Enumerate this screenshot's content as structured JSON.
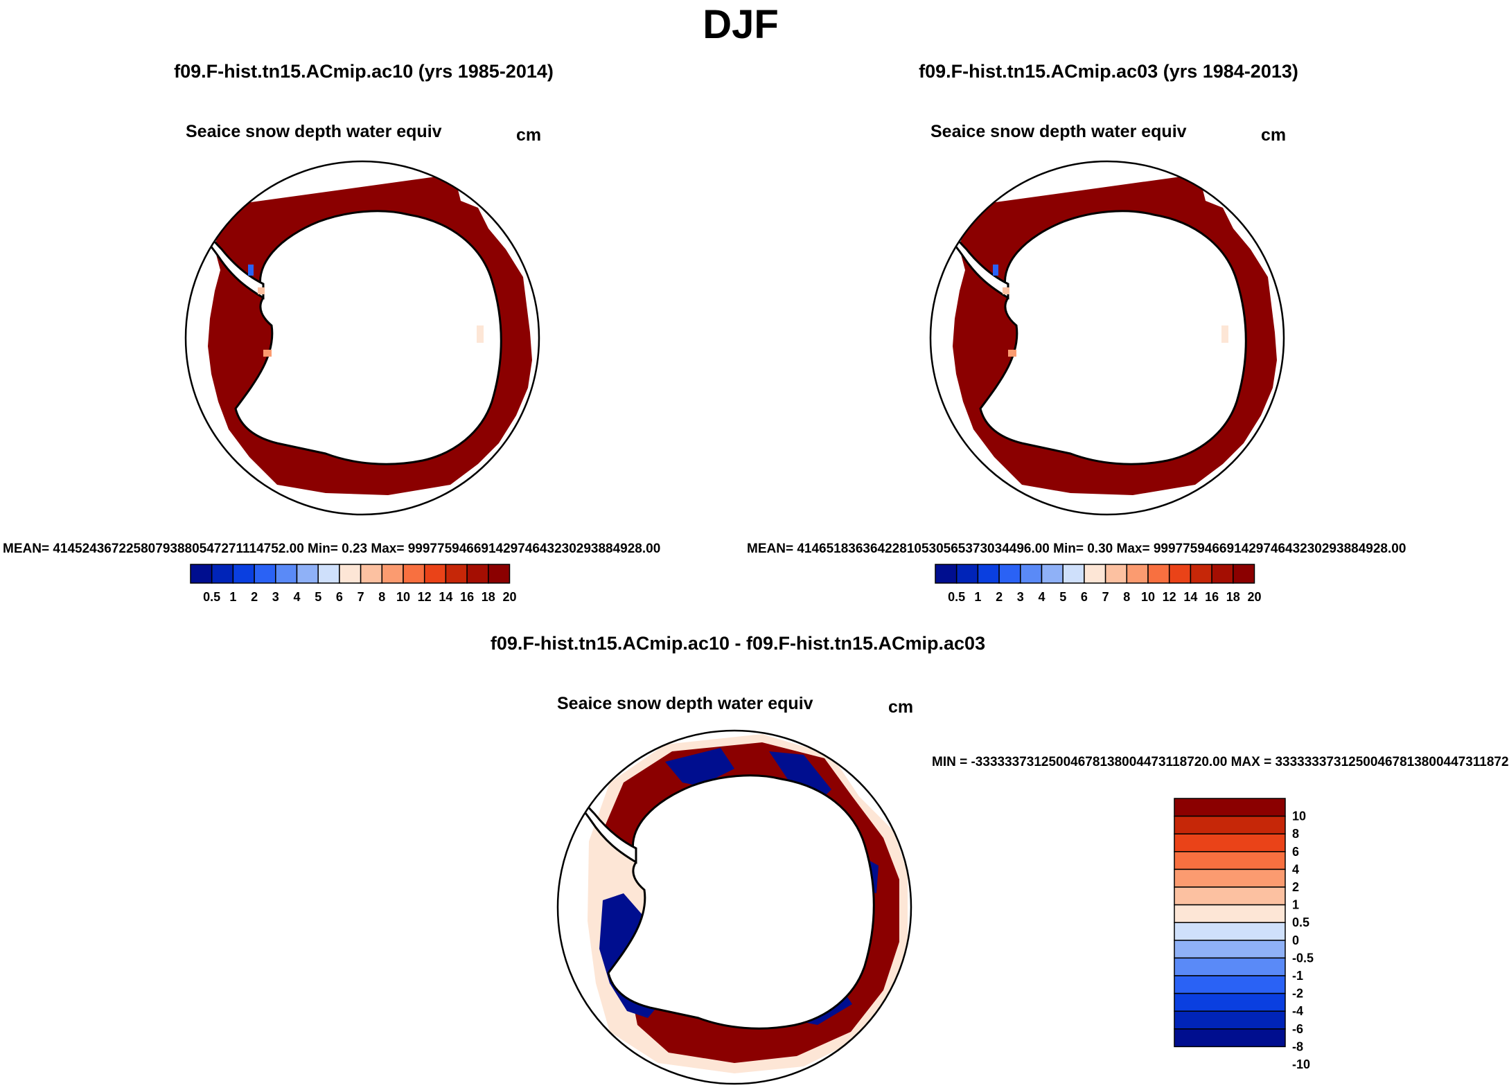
{
  "title": "DJF",
  "colors": {
    "ice_main": "#8b0000",
    "land": "#ffffff",
    "coast": "#000000",
    "abs_scale": [
      "#000e8f",
      "#0024b8",
      "#0a3fe0",
      "#2a62f5",
      "#5a8af7",
      "#8fb1f7",
      "#cfe0fb",
      "#fde6d6",
      "#fcc1a1",
      "#fb9b70",
      "#f87040",
      "#ea4318",
      "#c62708",
      "#a40e02",
      "#8b0000"
    ],
    "diff_scale": [
      "#000e8f",
      "#0024b8",
      "#0a3fe0",
      "#2a62f5",
      "#5a8af7",
      "#8fb1f7",
      "#cfe0fb",
      "#fde6d6",
      "#fcc1a1",
      "#fb9b70",
      "#f87040",
      "#ea4318",
      "#c62708",
      "#8b0000"
    ]
  },
  "panels": [
    {
      "case": "f09.F-hist.tn15.ACmip.ac10 (yrs 1985-2014)",
      "variable": "Seaice snow depth water equiv",
      "units": "cm",
      "stats": "MEAN= 41452436722580793880547271114752.00  Min=    0.23  Max= 99977594669142974643230293884928.00",
      "colorbar_labels": [
        "0.5",
        "1",
        "2",
        "3",
        "4",
        "5",
        "6",
        "7",
        "8",
        "10",
        "12",
        "14",
        "16",
        "18",
        "20"
      ]
    },
    {
      "case": "f09.F-hist.tn15.ACmip.ac03 (yrs 1984-2013)",
      "variable": "Seaice snow depth water equiv",
      "units": "cm",
      "stats": "MEAN= 41465183636422810530565373034496.00  Min=    0.30  Max= 99977594669142974643230293884928.00",
      "colorbar_labels": [
        "0.5",
        "1",
        "2",
        "3",
        "4",
        "5",
        "6",
        "7",
        "8",
        "10",
        "12",
        "14",
        "16",
        "18",
        "20"
      ]
    }
  ],
  "diff_panel": {
    "case": "f09.F-hist.tn15.ACmip.ac10 - f09.F-hist.tn15.ACmip.ac03",
    "variable": "Seaice snow depth water equiv",
    "units": "cm",
    "stats": "MIN = -33333373125004678138004473118720.00 MAX = 33333337312500467813800447311872",
    "colorbar_labels": [
      "10",
      "8",
      "6",
      "4",
      "2",
      "1",
      "0.5",
      "0",
      "-0.5",
      "-1",
      "-2",
      "-4",
      "-6",
      "-8",
      "-10"
    ]
  }
}
